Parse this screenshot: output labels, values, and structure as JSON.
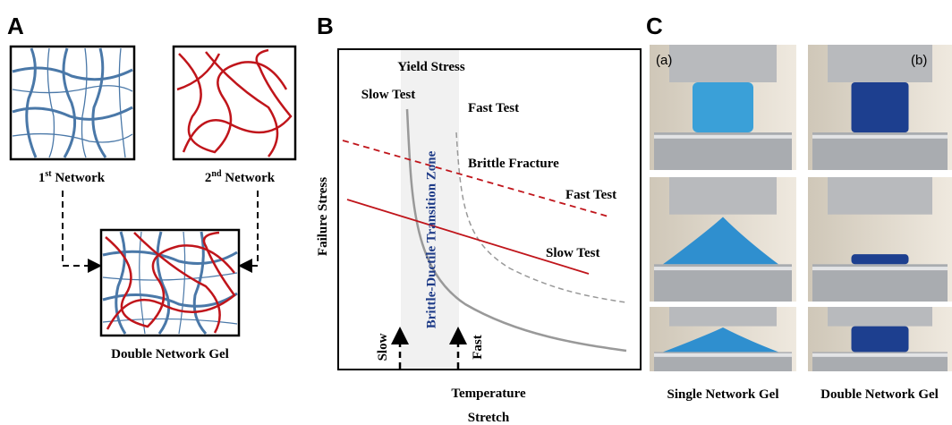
{
  "panel_a": {
    "letter": "A",
    "first_network": {
      "number": "1",
      "suffix": "st",
      "rest": " Network"
    },
    "second_network": {
      "number": "2",
      "suffix": "nd",
      "rest": " Network"
    },
    "double_network": "Double Network Gel"
  },
  "panel_b": {
    "letter": "B",
    "yield_stress": "Yield Stress",
    "slow_test_top": "Slow Test",
    "fast_test_top": "Fast Test",
    "brittle_fracture": "Brittle Fracture",
    "fast_test_line": "Fast Test",
    "slow_test_line": "Slow Test",
    "zone": "Brittle-Ductile Transition Zone",
    "y_axis": "Failure Stress",
    "slow": "Slow",
    "fast": "Fast",
    "x_axis_1": "Temperature",
    "x_axis_2": "Stretch"
  },
  "panel_c": {
    "letter": "C",
    "label_a": "(a)",
    "label_b": "(b)",
    "single": "Single Network Gel",
    "double": "Double Network Gel"
  }
}
